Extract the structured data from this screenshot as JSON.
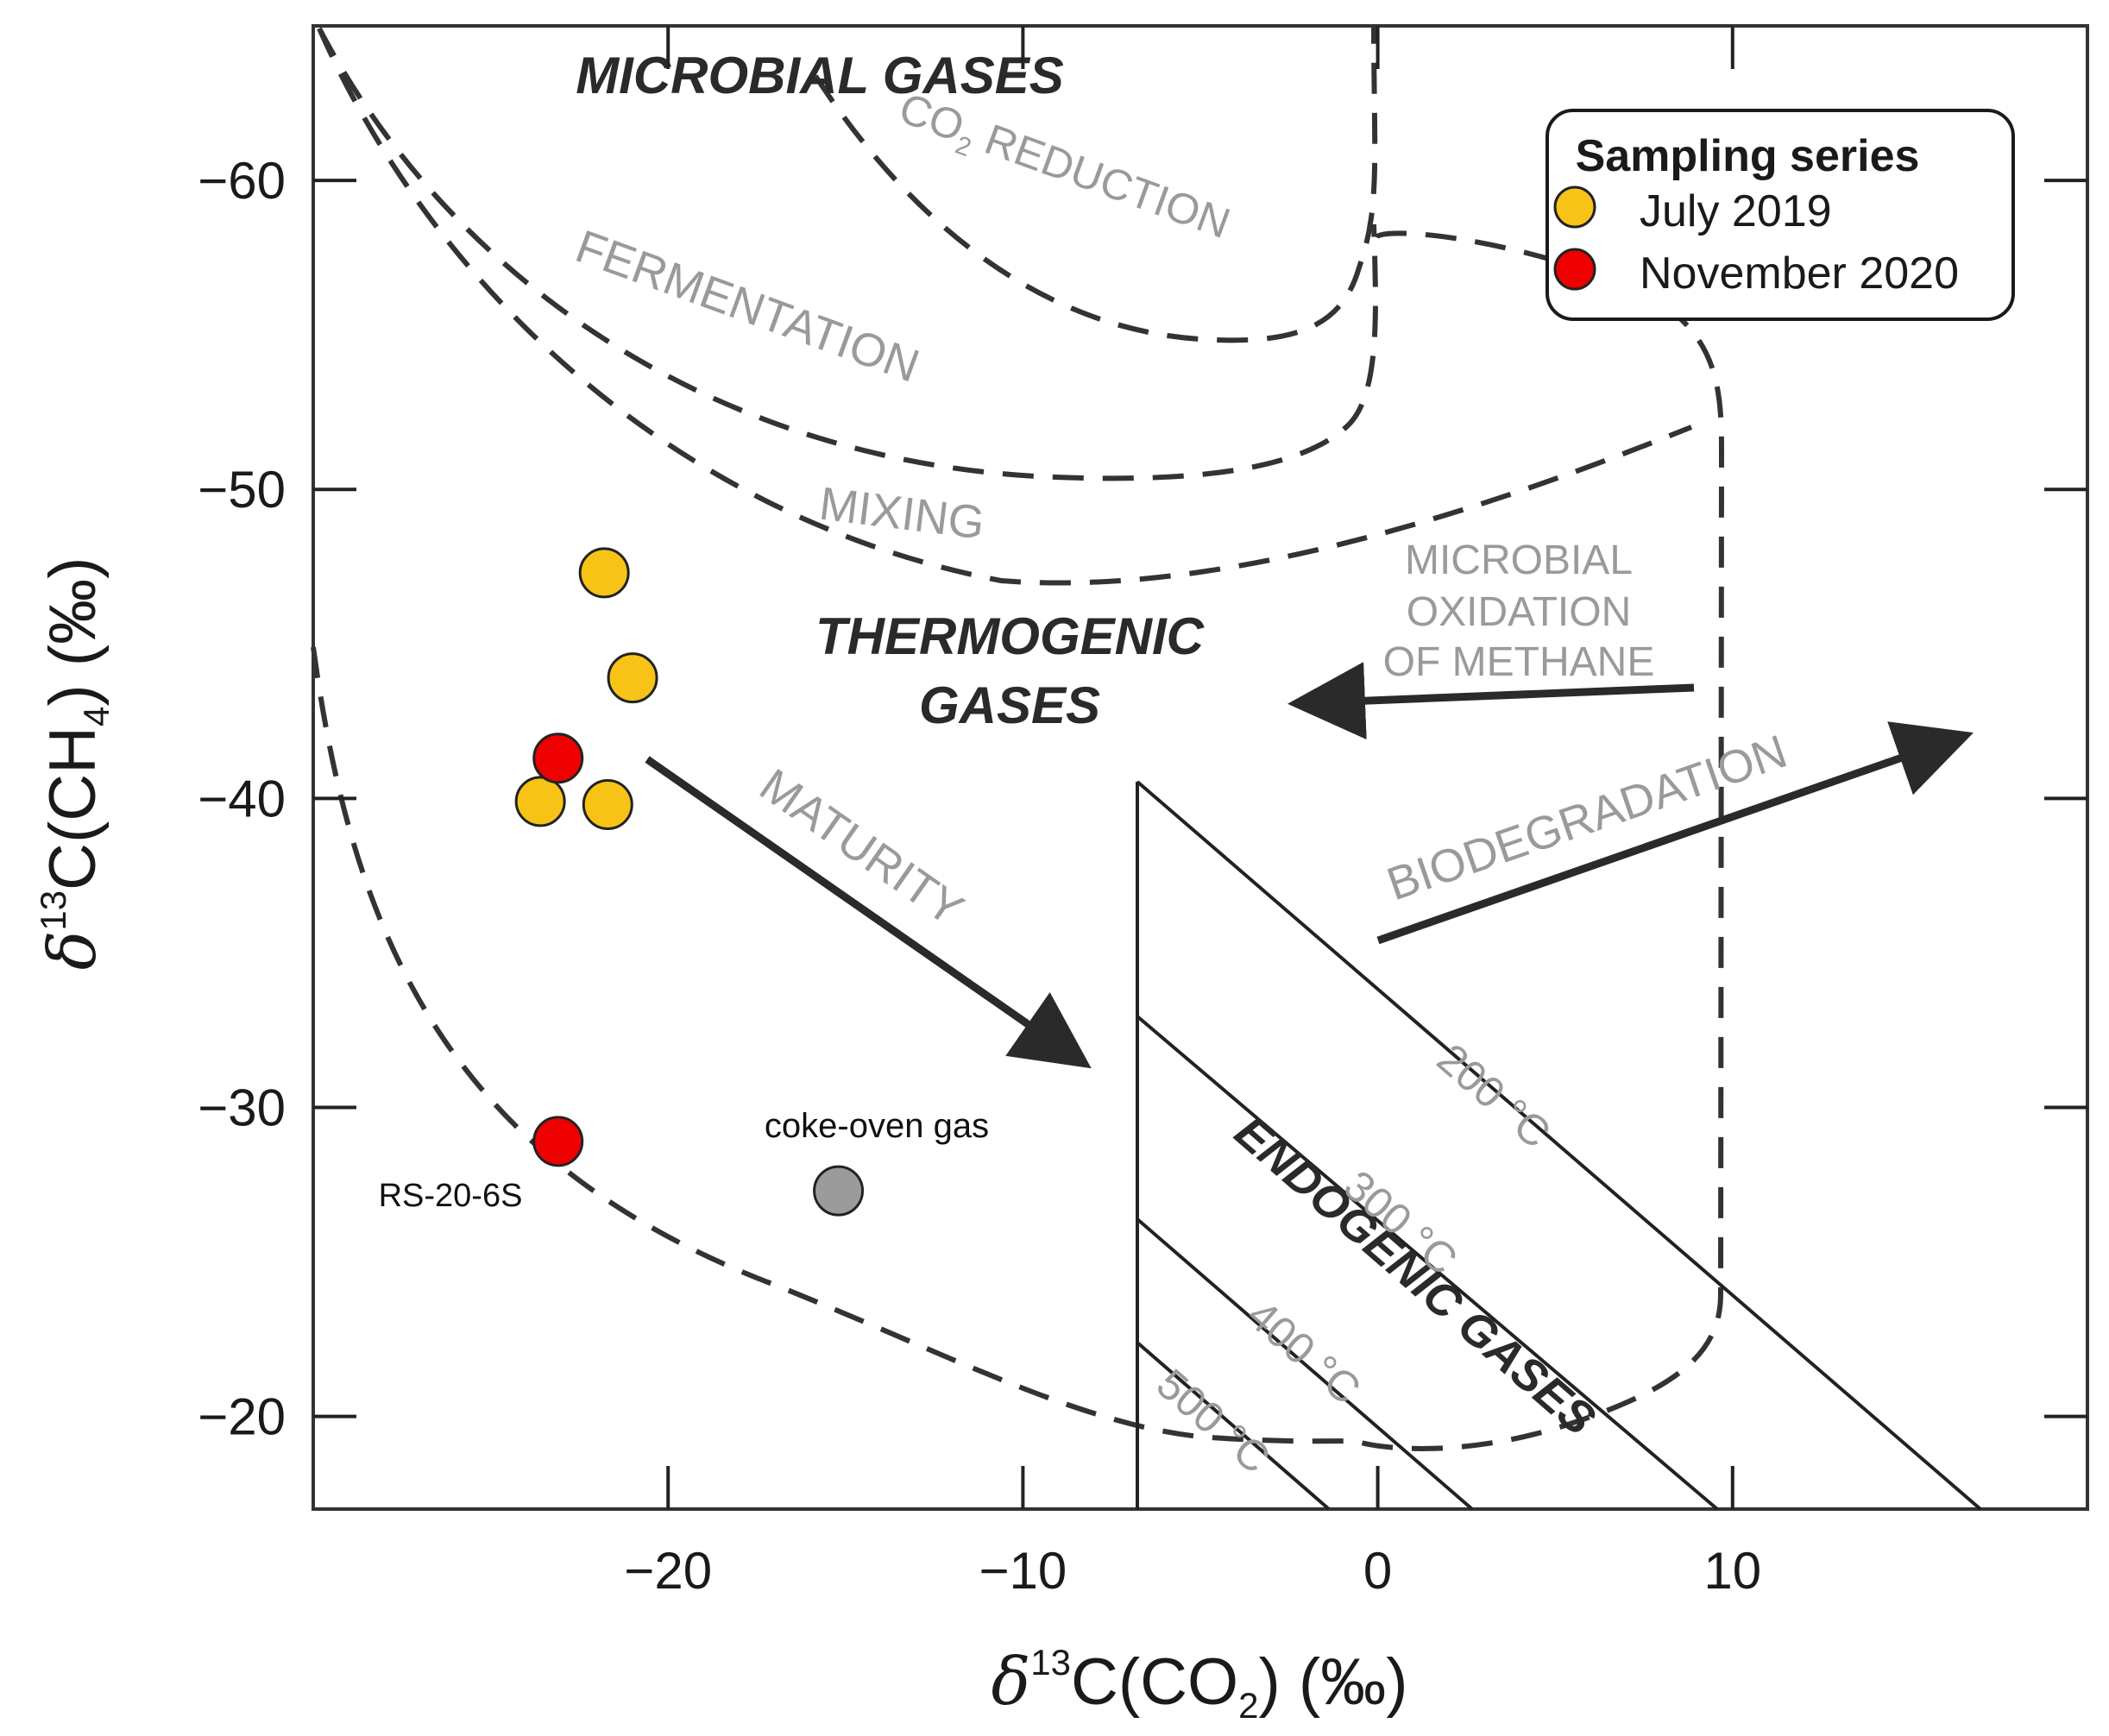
{
  "chart_data": {
    "type": "scatter",
    "xlabel": {
      "symbol": "δ",
      "sup": "13",
      "main": "C(CO",
      "sub": "2",
      "tail": ") (‰)"
    },
    "ylabel": {
      "symbol": "δ",
      "sup": "13",
      "main": "C(CH",
      "sub": "4",
      "tail": ") (‰)"
    },
    "xlim": [
      -30,
      20
    ],
    "ylim": [
      -17,
      -65
    ],
    "x_ticks": [
      -20,
      -10,
      0,
      10
    ],
    "y_ticks": [
      -60,
      -50,
      -40,
      -30,
      -20
    ],
    "x_tick_labels": [
      "−20",
      "−10",
      "0",
      "10"
    ],
    "y_tick_labels": [
      "−60",
      "−50",
      "−40",
      "−30",
      "−20"
    ],
    "grid": false,
    "legend": {
      "title": "Sampling series",
      "position": "top-right",
      "entries": [
        {
          "name": "July 2019",
          "color": "#f7c317"
        },
        {
          "name": "November 2020",
          "color": "#ee0000"
        }
      ]
    },
    "series": [
      {
        "name": "July 2019",
        "color": "#f7c317",
        "points": [
          {
            "x": -21.8,
            "y": -47.3
          },
          {
            "x": -21.0,
            "y": -43.9
          },
          {
            "x": -23.6,
            "y": -39.9
          },
          {
            "x": -21.7,
            "y": -39.8
          }
        ]
      },
      {
        "name": "November 2020",
        "color": "#ee0000",
        "points": [
          {
            "x": -23.1,
            "y": -41.3
          },
          {
            "x": -23.1,
            "y": -28.9,
            "label": "RS-20-6S"
          }
        ]
      },
      {
        "name": "coke-oven gas",
        "color": "#9b9b9b",
        "points": [
          {
            "x": -15.2,
            "y": -27.3,
            "label": "coke-oven gas"
          }
        ]
      }
    ],
    "region_labels": {
      "microbial": "MICROBIAL GASES",
      "thermogenic_1": "THERMOGENIC",
      "thermogenic_2": "GASES",
      "endogenic": "ENDOGENIC GASES"
    },
    "process_labels": {
      "co2_reduction_main": "CO",
      "co2_reduction_sub": "2",
      "co2_reduction_rest": " REDUCTION",
      "fermentation": "FERMENTATION",
      "mixing": "MIXING",
      "oxidation_1": "MICROBIAL",
      "oxidation_2": "OXIDATION",
      "oxidation_3": "OF METHANE",
      "maturity": "MATURITY",
      "biodegradation": "BIODEGRADATION"
    },
    "temperature_labels": [
      "200 °C",
      "300 °C",
      "400 °C",
      "500 °C"
    ]
  }
}
